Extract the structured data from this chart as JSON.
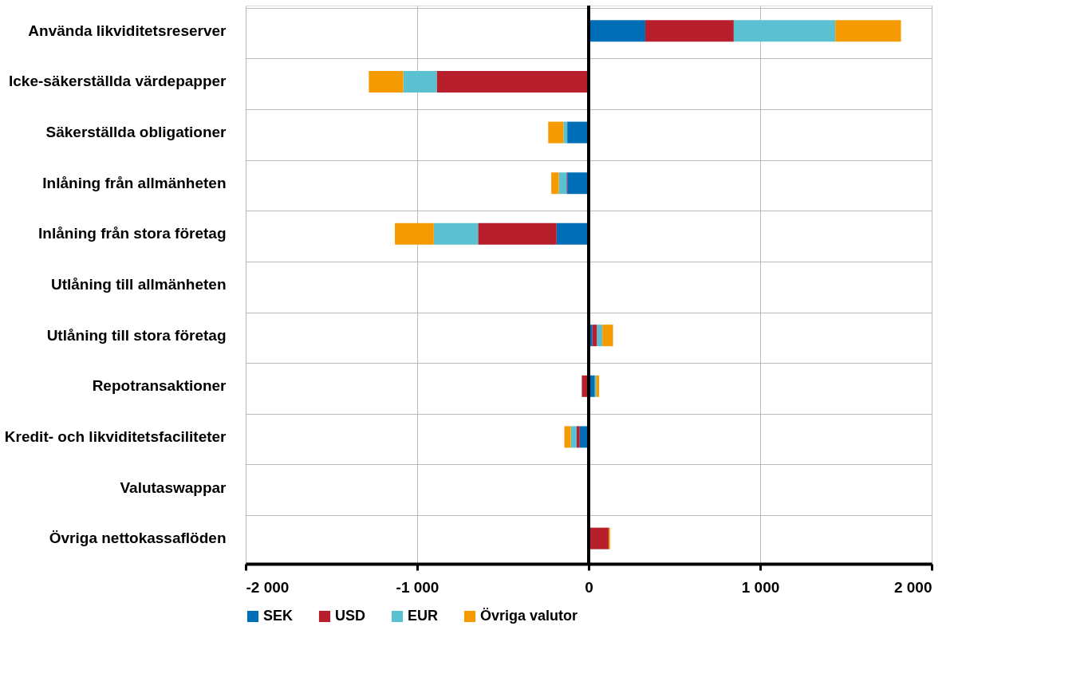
{
  "chart_data": {
    "type": "bar",
    "orientation": "horizontal",
    "stacked": true,
    "categories": [
      "Använda likviditetsreserver",
      "Icke-säkerställda värdepapper",
      "Säkerställda obligationer",
      "Inlåning från allmänheten",
      "Inlåning från stora företag",
      "Utlåning till allmänheten",
      "Utlåning till stora företag",
      "Repotransaktioner",
      "Kredit- och likviditetsfaciliteter",
      "Valutaswappar",
      "Övriga nettokassaflöden"
    ],
    "series": [
      {
        "name": "SEK",
        "color": "#006eb6",
        "values": [
          330,
          null,
          -125,
          -125,
          -187,
          null,
          22,
          36,
          -52,
          null,
          null
        ]
      },
      {
        "name": "USD",
        "color": "#b81f2d",
        "values": [
          516,
          -886,
          null,
          -4,
          -458,
          null,
          27,
          -40,
          -18,
          null,
          117
        ]
      },
      {
        "name": "EUR",
        "color": "#5bc0cf",
        "values": [
          592,
          -195,
          -22,
          -45,
          -258,
          null,
          31,
          7,
          -34,
          null,
          null
        ]
      },
      {
        "name": "Övriga valutor",
        "color": "#f59a00",
        "values": [
          383,
          -201,
          -89,
          -44,
          -227,
          null,
          62,
          18,
          -38,
          null,
          8
        ]
      }
    ],
    "xlim": [
      -2000,
      2000
    ],
    "xticks": [
      {
        "value": -2000,
        "label": "-2 000"
      },
      {
        "value": -1000,
        "label": "-1 000"
      },
      0,
      {
        "value": 1000,
        "label": "1 000"
      },
      {
        "value": 2000,
        "label": "2 000"
      }
    ],
    "grid": true,
    "legend": "bottom"
  }
}
